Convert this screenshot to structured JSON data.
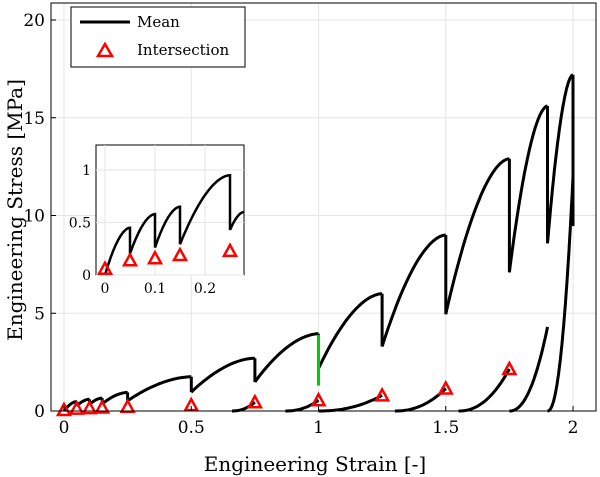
{
  "chart_data": {
    "type": "line",
    "title": "",
    "xlabel": "Engineering Strain [-]",
    "ylabel": "Engineering Stress [MPa]",
    "xlim": [
      -0.05,
      2.1
    ],
    "ylim": [
      0,
      21
    ],
    "grid": true,
    "legend_placement": "top-left",
    "x_ticks": [
      0,
      0.5,
      1,
      1.5,
      2
    ],
    "x_tick_labels": [
      "0",
      "0.5",
      "1",
      "1.5",
      "2"
    ],
    "y_ticks": [
      0,
      5,
      10,
      15,
      20
    ],
    "y_tick_labels": [
      "0",
      "5",
      "10",
      "15",
      "20"
    ],
    "series": [
      {
        "name": "Mean",
        "color": "#000000",
        "cycles": [
          {
            "unload_x": 0.05,
            "peak": 0.48
          },
          {
            "unload_x": 0.1,
            "peak": 0.6
          },
          {
            "unload_x": 0.15,
            "peak": 0.66
          },
          {
            "unload_x": 0.25,
            "peak": 0.95
          },
          {
            "unload_x": 0.5,
            "peak": 1.75
          },
          {
            "unload_x": 0.75,
            "peak": 2.7
          },
          {
            "unload_x": 1.0,
            "peak": 3.95
          },
          {
            "unload_x": 1.25,
            "peak": 6.0
          },
          {
            "unload_x": 1.5,
            "peak": 9.0
          },
          {
            "unload_x": 1.75,
            "peak": 12.9
          },
          {
            "unload_x": 1.9,
            "peak": 15.6
          },
          {
            "unload_x": 2.0,
            "peak": 17.2
          }
        ]
      },
      {
        "name": "Intersection",
        "color": "#ff0000",
        "x": [
          0,
          0.05,
          0.1,
          0.15,
          0.25,
          0.5,
          0.75,
          1.0,
          1.25,
          1.5,
          1.75
        ],
        "y": [
          0.05,
          0.12,
          0.15,
          0.18,
          0.22,
          0.3,
          0.45,
          0.55,
          0.8,
          1.15,
          2.15
        ]
      }
    ],
    "highlight": {
      "color": "#00cc00",
      "x": 1.0,
      "y_range": [
        1.3,
        3.9
      ]
    },
    "inset": {
      "xlim": [
        -0.02,
        0.28
      ],
      "ylim": [
        0,
        1.2
      ],
      "x_ticks": [
        0,
        0.1,
        0.2
      ],
      "x_tick_labels": [
        "0",
        "0.1",
        "0.2"
      ],
      "y_ticks": [
        0,
        0.5,
        1
      ],
      "y_tick_labels": [
        "0",
        "0.5",
        "1"
      ],
      "intersection_y": [
        0.06,
        0.14,
        0.16,
        0.19,
        0.23
      ]
    }
  }
}
